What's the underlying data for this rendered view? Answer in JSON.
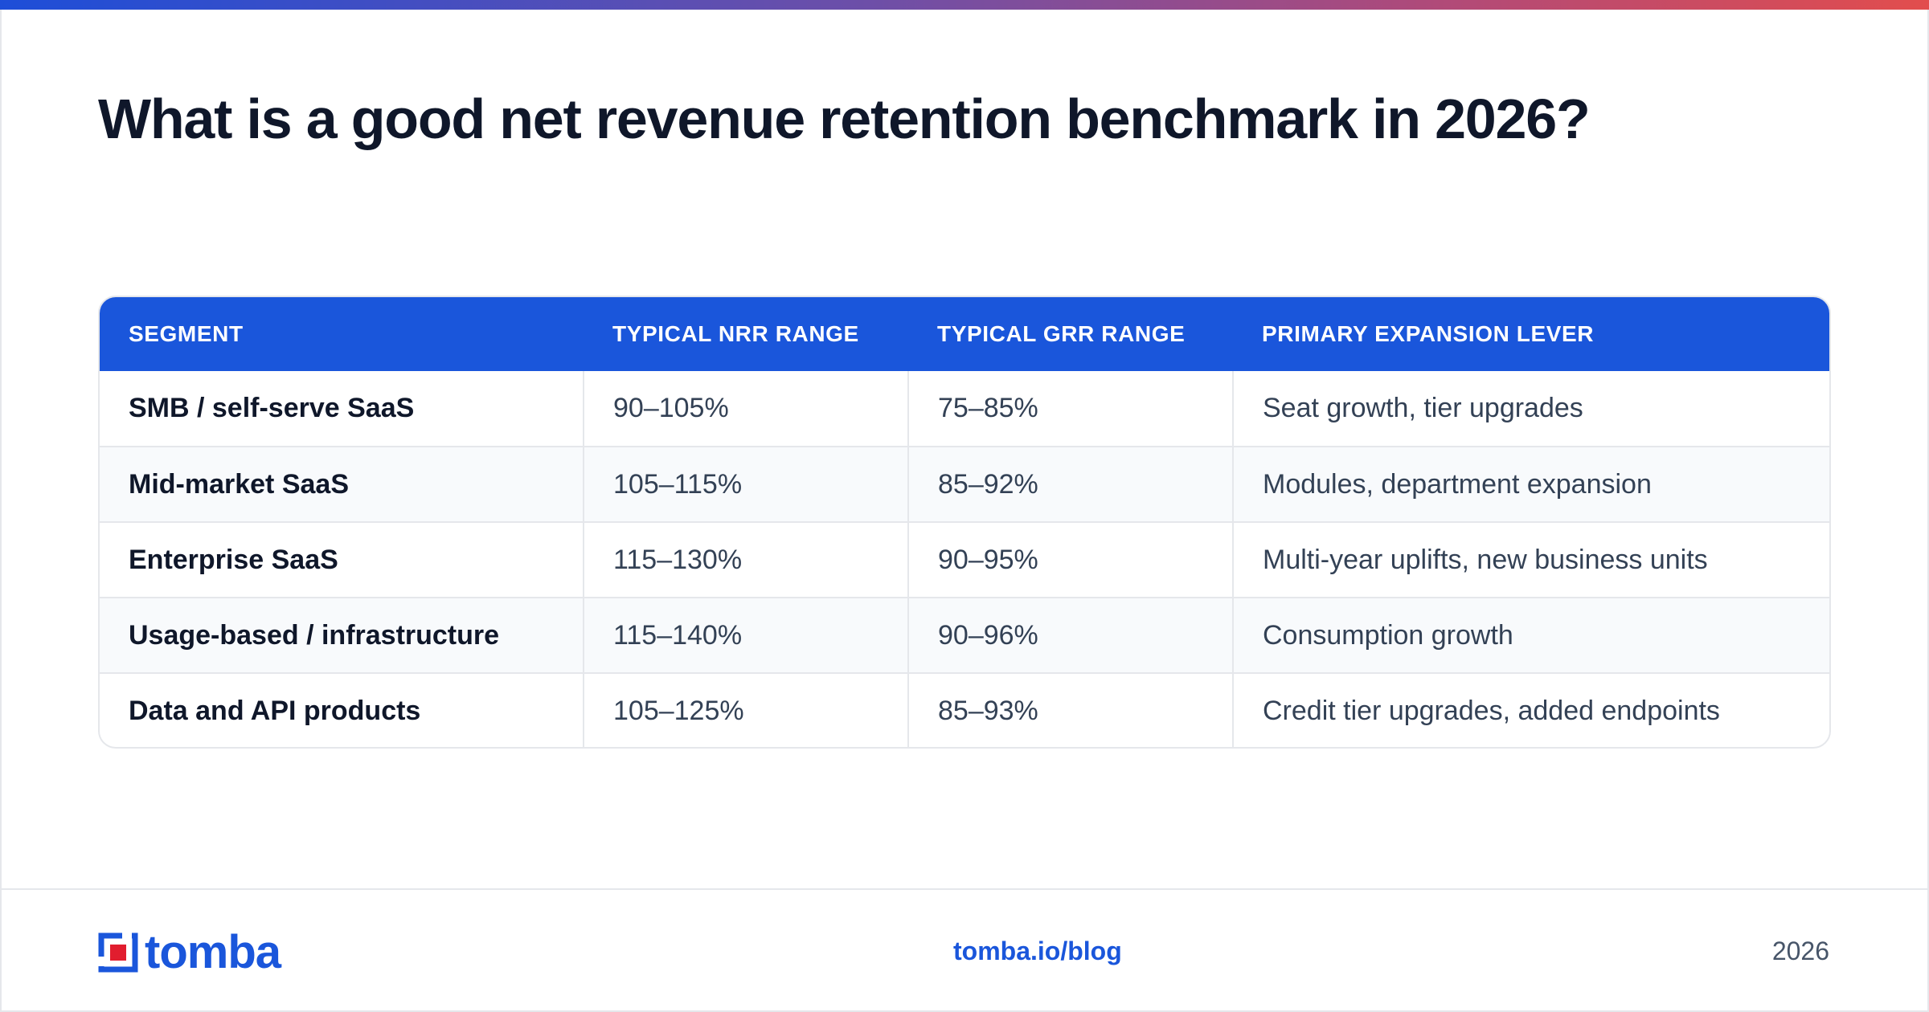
{
  "colors": {
    "accent_blue": "#1a56db",
    "gradient_start": "#1d4ed8",
    "gradient_end": "#e24d4d",
    "title": "#0f172a",
    "body_text": "#334155",
    "row_alt": "#f8fafc",
    "border": "#e5e7eb",
    "logo_red": "#e11d2e"
  },
  "header": {
    "title": "What is a good net revenue retention benchmark in 2026?"
  },
  "table": {
    "columns": [
      "SEGMENT",
      "TYPICAL NRR RANGE",
      "TYPICAL GRR RANGE",
      "PRIMARY EXPANSION LEVER"
    ],
    "rows": [
      {
        "segment": "SMB / self-serve SaaS",
        "nrr": "90–105%",
        "grr": "75–85%",
        "lever": "Seat growth, tier upgrades"
      },
      {
        "segment": "Mid-market SaaS",
        "nrr": "105–115%",
        "grr": "85–92%",
        "lever": "Modules, department expansion"
      },
      {
        "segment": "Enterprise SaaS",
        "nrr": "115–130%",
        "grr": "90–95%",
        "lever": "Multi-year uplifts, new business units"
      },
      {
        "segment": "Usage-based / infrastructure",
        "nrr": "115–140%",
        "grr": "90–96%",
        "lever": "Consumption growth"
      },
      {
        "segment": "Data and API products",
        "nrr": "105–125%",
        "grr": "85–93%",
        "lever": "Credit tier upgrades, added endpoints"
      }
    ]
  },
  "footer": {
    "logo_text": "tomba",
    "logo_icon": "tomba-logo-icon",
    "link": "tomba.io/blog",
    "year": "2026"
  }
}
